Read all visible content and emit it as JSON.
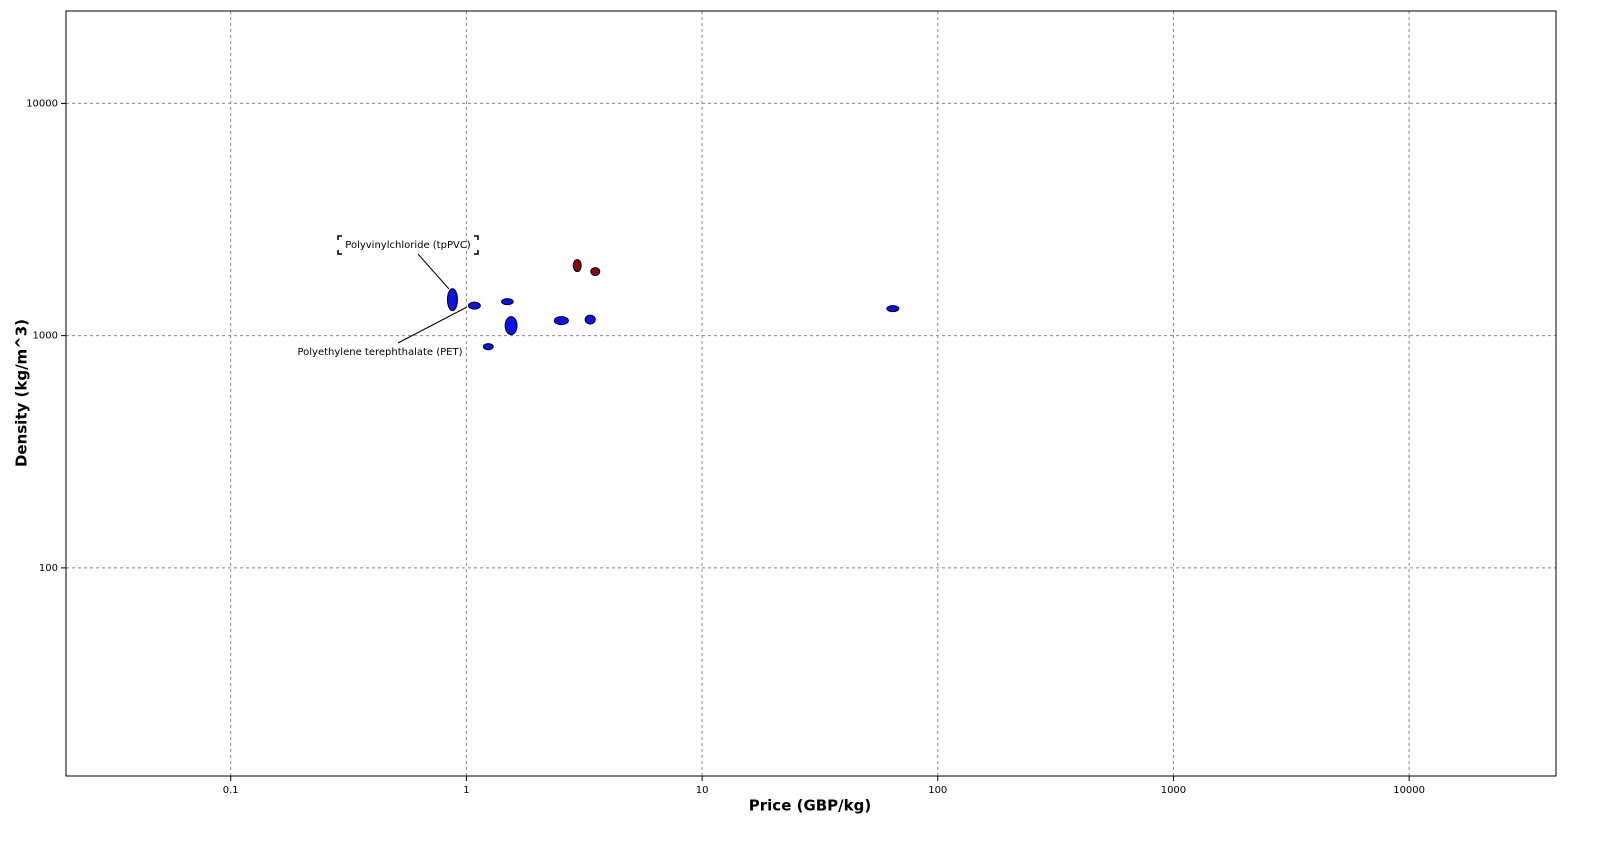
{
  "chart_data": {
    "type": "scatter",
    "x_label": "Price (GBP/kg)",
    "y_label": "Density (kg/m^3)",
    "xscale": "log",
    "yscale": "log",
    "grid": true,
    "xlim": [
      0.02,
      42000
    ],
    "ylim": [
      12.7,
      25000
    ],
    "xticks": [
      0.1,
      1,
      10,
      100,
      1000,
      10000
    ],
    "yticks": [
      100,
      1000,
      10000
    ],
    "series": [
      {
        "color": "#0a14e6",
        "points": [
          {
            "x": [
              0.831,
              0.916
            ],
            "y": [
              1282,
              1594
            ]
          },
          {
            "x": [
              1.02,
              1.146
            ],
            "y": [
              1301,
              1394
            ]
          },
          {
            "x": [
              1.41,
              1.58
            ],
            "y": [
              1360,
              1443
            ]
          },
          {
            "x": [
              1.46,
              1.64
            ],
            "y": [
              1010,
              1208
            ]
          },
          {
            "x": [
              1.18,
              1.3
            ],
            "y": [
              870,
              924
            ]
          },
          {
            "x": [
              2.36,
              2.71
            ],
            "y": [
              1115,
              1208
            ]
          },
          {
            "x": [
              3.19,
              3.52
            ],
            "y": [
              1121,
              1226
            ]
          },
          {
            "x": [
              60.8,
              68.4
            ],
            "y": [
              1269,
              1346
            ]
          }
        ]
      },
      {
        "color": "#8b0a0a",
        "points": [
          {
            "x": [
              2.84,
              3.07
            ],
            "y": [
              1888,
              2126
            ]
          },
          {
            "x": [
              3.37,
              3.68
            ],
            "y": [
              1815,
              1964
            ]
          }
        ]
      }
    ],
    "annotations": [
      "Polyvinylchloride (tpPVC)",
      "Polyethylene terephthalate (PET)"
    ]
  }
}
